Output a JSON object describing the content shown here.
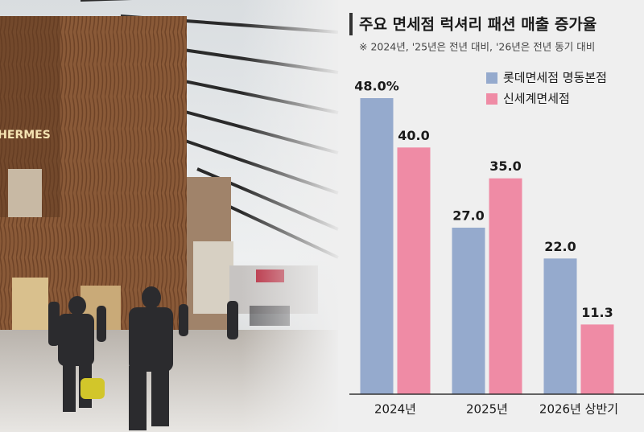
{
  "photo": {
    "sign": "HERMES"
  },
  "chart_data": {
    "type": "bar",
    "title": "주요 면세점 럭셔리 패션 매출 증가율",
    "subtitle": "※ 2024년, '25년은 전년 대비, '26년은 전년 동기 대비",
    "categories": [
      "2024년",
      "2025년",
      "2026년 상반기"
    ],
    "series": [
      {
        "name": "롯데면세점 명동본점",
        "color": "#95aacd",
        "values": [
          48.0,
          27.0,
          22.0
        ],
        "value_labels": [
          "48.0%",
          "27.0",
          "22.0"
        ]
      },
      {
        "name": "신세계면세점",
        "color": "#ef8ba5",
        "values": [
          40.0,
          35.0,
          11.3
        ],
        "value_labels": [
          "40.0",
          "35.0",
          "11.3"
        ]
      }
    ],
    "ylim": [
      0,
      60
    ],
    "legend": "top-right"
  }
}
